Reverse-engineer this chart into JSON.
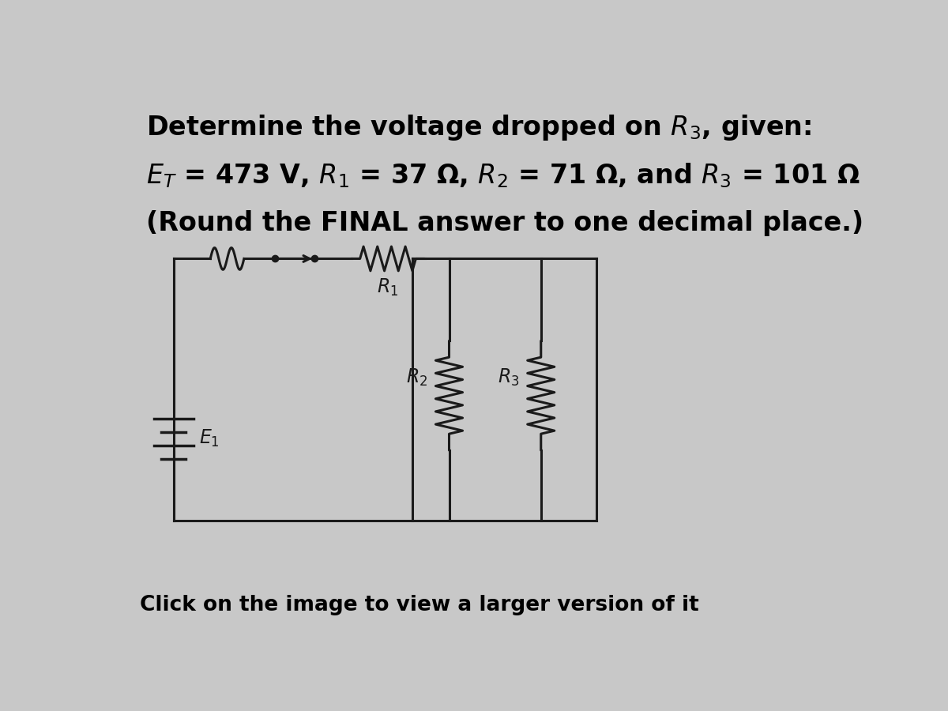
{
  "background_color": "#c8c8c8",
  "circuit_bg": "#e8e8e8",
  "title_line1": "Determine the voltage dropped on $R_3$, given:",
  "title_line2": "$E_T$ = 473 V, $R_1$ = 37 Ω, $R_2$ = 71 Ω, and $R_3$ = 101 Ω",
  "title_line3": "(Round the FINAL answer to one decimal place.)",
  "footer": "Click on the image to view a larger version of it",
  "text_color": "#000000",
  "line_color": "#1a1a1a",
  "font_size_main": 24,
  "font_size_footer": 19,
  "font_size_label": 17
}
